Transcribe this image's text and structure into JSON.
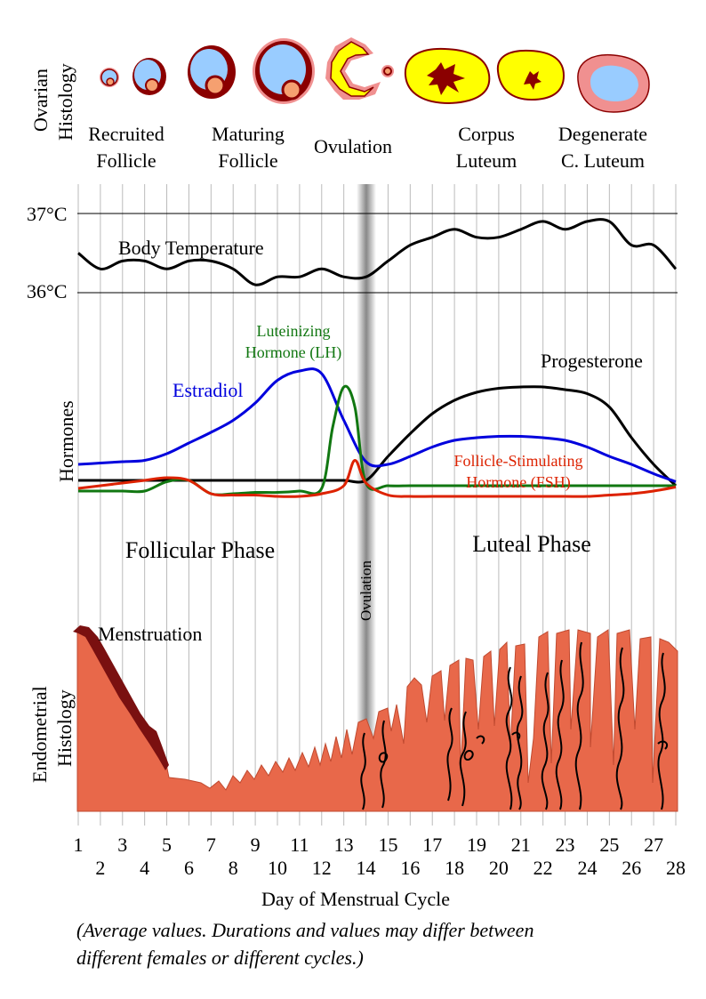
{
  "ovarian": {
    "title_line1": "Ovarian",
    "title_line2": "Histology",
    "labels": [
      {
        "line1": "Recruited",
        "line2": "Follicle"
      },
      {
        "line1": "Maturing",
        "line2": "Follicle"
      },
      {
        "line1": "Ovulation",
        "line2": ""
      },
      {
        "line1": "Corpus",
        "line2": "Luteum"
      },
      {
        "line1": "Degenerate",
        "line2": "C. Luteum"
      }
    ]
  },
  "temperature": {
    "label": "Body Temperature",
    "high_label": "37°C",
    "low_label": "36°C"
  },
  "hormones": {
    "axis_label": "Hormones",
    "lh_line1": "Luteinizing",
    "lh_line2": "Hormone (LH)",
    "estradiol": "Estradiol",
    "progesterone": "Progesterone",
    "fsh_line1": "Follicle-Stimulating",
    "fsh_line2": "Hormone (FSH)"
  },
  "phases": {
    "follicular": "Follicular Phase",
    "luteal": "Luteal Phase",
    "ovulation_band": "Ovulation"
  },
  "endometrium": {
    "title_line1": "Endometrial",
    "title_line2": "Histology",
    "menstruation": "Menstruation"
  },
  "days": {
    "odd": [
      "1",
      "3",
      "5",
      "7",
      "9",
      "11",
      "13",
      "15",
      "17",
      "19",
      "21",
      "23",
      "25",
      "27"
    ],
    "even": [
      "2",
      "4",
      "6",
      "8",
      "10",
      "12",
      "14",
      "16",
      "18",
      "20",
      "22",
      "24",
      "26",
      "28"
    ],
    "axis_title": "Day of Menstrual Cycle"
  },
  "caption": {
    "line1": "(Average values. Durations and values may differ between",
    "line2": "different females or different cycles.)"
  },
  "colors": {
    "estradiol": "#0000dd",
    "lh": "#117711",
    "fsh": "#dd2200",
    "progesterone": "#000000",
    "temperature": "#000000",
    "endometrium": "#e8684a",
    "menstruation": "#7a1010",
    "follicle_blue": "#99ccff",
    "corpus_yellow": "#ffff00",
    "follicle_darkred": "#8b0000",
    "follicle_pink": "#f09090"
  },
  "chart_data": {
    "type": "line",
    "x": [
      1,
      28
    ],
    "xlabel": "Day of Menstrual Cycle",
    "ylabel": "Hormones",
    "series": [
      {
        "name": "Body Temperature",
        "x": [
          1,
          2,
          3,
          4,
          5,
          6,
          7,
          8,
          9,
          10,
          11,
          12,
          13,
          14,
          15,
          16,
          17,
          18,
          19,
          20,
          21,
          22,
          23,
          24,
          25,
          26,
          27,
          28
        ],
        "values": [
          36.5,
          36.3,
          36.4,
          36.4,
          36.3,
          36.4,
          36.4,
          36.3,
          36.1,
          36.2,
          36.2,
          36.3,
          36.2,
          36.2,
          36.4,
          36.6,
          36.7,
          36.8,
          36.7,
          36.7,
          36.8,
          36.9,
          36.8,
          36.9,
          36.9,
          36.6,
          36.6,
          36.3
        ]
      },
      {
        "name": "Estradiol",
        "x": [
          1,
          2,
          3,
          4,
          5,
          6,
          7,
          8,
          9,
          10,
          11,
          12,
          13,
          14,
          15,
          16,
          17,
          18,
          19,
          20,
          21,
          22,
          23,
          24,
          25,
          26,
          27,
          28
        ],
        "values": [
          0.12,
          0.13,
          0.14,
          0.15,
          0.2,
          0.28,
          0.36,
          0.45,
          0.58,
          0.75,
          0.82,
          0.8,
          0.45,
          0.14,
          0.12,
          0.18,
          0.25,
          0.3,
          0.32,
          0.33,
          0.33,
          0.32,
          0.3,
          0.25,
          0.18,
          0.12,
          0.05,
          -0.01
        ]
      },
      {
        "name": "Luteinizing Hormone (LH)",
        "x": [
          1,
          2,
          3,
          4,
          5,
          6,
          7,
          8,
          9,
          10,
          11,
          12,
          12.5,
          13,
          13.5,
          14,
          15,
          16,
          17,
          18,
          19,
          20,
          21,
          22,
          23,
          24,
          25,
          26,
          27,
          28
        ],
        "values": [
          -0.08,
          -0.08,
          -0.08,
          -0.08,
          -0.01,
          0.0,
          -0.1,
          -0.1,
          -0.09,
          -0.09,
          -0.08,
          -0.06,
          0.4,
          0.7,
          0.55,
          -0.02,
          -0.04,
          -0.04,
          -0.04,
          -0.04,
          -0.04,
          -0.04,
          -0.04,
          -0.04,
          -0.04,
          -0.04,
          -0.04,
          -0.04,
          -0.04,
          -0.04
        ]
      },
      {
        "name": "Follicle-Stimulating Hormone (FSH)",
        "x": [
          1,
          2,
          3,
          4,
          5,
          6,
          7,
          8,
          9,
          10,
          11,
          12,
          13,
          13.5,
          14,
          15,
          16,
          17,
          18,
          19,
          20,
          21,
          22,
          23,
          24,
          25,
          26,
          27,
          28
        ],
        "values": [
          -0.06,
          -0.04,
          -0.02,
          0.0,
          0.02,
          0.0,
          -0.1,
          -0.11,
          -0.11,
          -0.12,
          -0.12,
          -0.1,
          -0.04,
          0.15,
          -0.02,
          -0.11,
          -0.12,
          -0.12,
          -0.12,
          -0.12,
          -0.12,
          -0.12,
          -0.12,
          -0.12,
          -0.12,
          -0.11,
          -0.1,
          -0.08,
          -0.05
        ]
      },
      {
        "name": "Progesterone",
        "x": [
          1,
          2,
          3,
          4,
          5,
          6,
          7,
          8,
          9,
          10,
          11,
          12,
          13,
          14,
          15,
          16,
          17,
          18,
          19,
          20,
          21,
          22,
          23,
          24,
          25,
          26,
          27,
          28
        ],
        "values": [
          0.0,
          0.0,
          0.0,
          0.0,
          0.0,
          0.0,
          0.0,
          0.0,
          0.0,
          0.0,
          0.0,
          0.0,
          0.0,
          0.0,
          0.18,
          0.35,
          0.5,
          0.6,
          0.66,
          0.69,
          0.7,
          0.7,
          0.68,
          0.65,
          0.55,
          0.32,
          0.12,
          -0.04
        ]
      }
    ]
  }
}
